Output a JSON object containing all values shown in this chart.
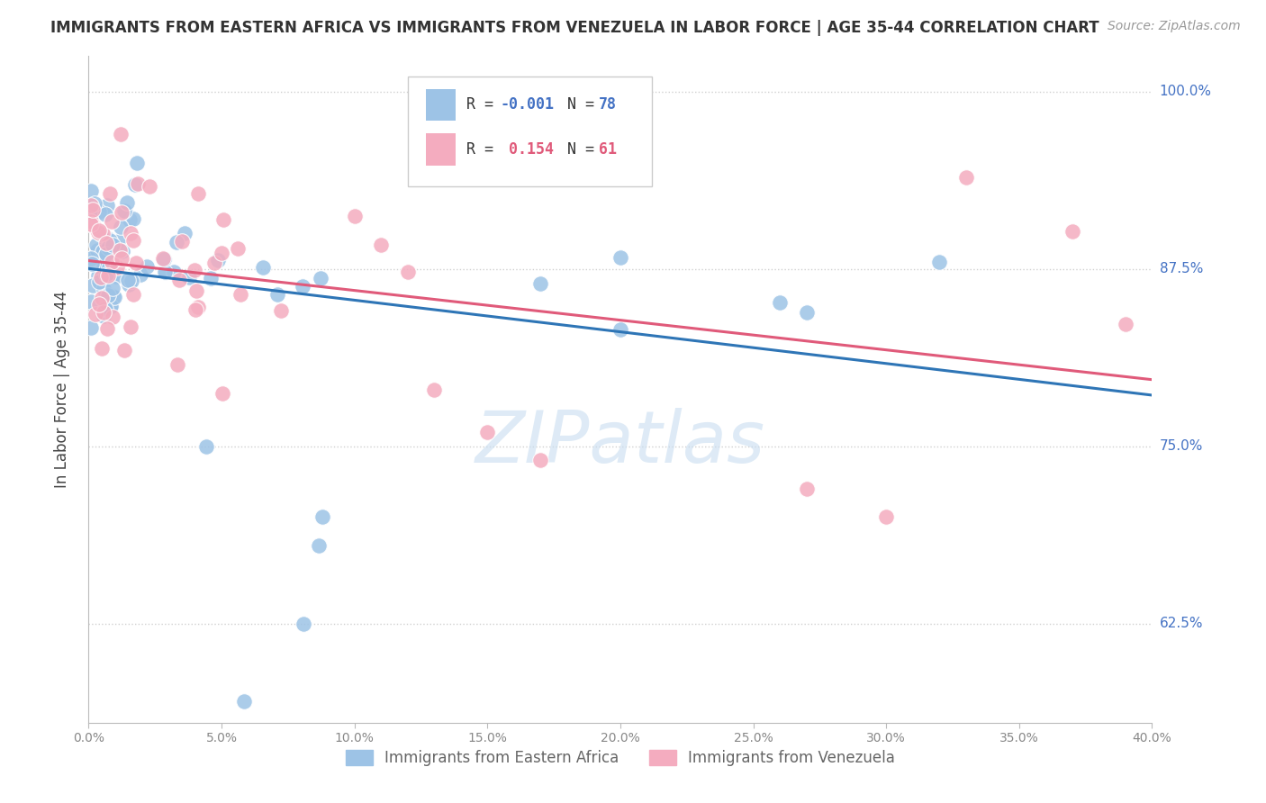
{
  "title": "IMMIGRANTS FROM EASTERN AFRICA VS IMMIGRANTS FROM VENEZUELA IN LABOR FORCE | AGE 35-44 CORRELATION CHART",
  "source": "Source: ZipAtlas.com",
  "ylabel": "In Labor Force | Age 35-44",
  "series1_label": "Immigrants from Eastern Africa",
  "series1_R": -0.001,
  "series1_N": 78,
  "series1_color": "#9dc3e6",
  "series1_line_color": "#2e75b6",
  "series2_label": "Immigrants from Venezuela",
  "series2_R": 0.154,
  "series2_N": 61,
  "series2_color": "#f4acbf",
  "series2_line_color": "#e05a7a",
  "watermark": "ZIPatlas",
  "background_color": "#ffffff",
  "plot_bg_color": "#ffffff",
  "grid_color": "#d0d0d0",
  "xmin": 0.0,
  "xmax": 0.4,
  "ymin": 0.555,
  "ymax": 1.025,
  "ytick_labels": [
    "62.5%",
    "75.0%",
    "87.5%",
    "100.0%"
  ],
  "ytick_values": [
    0.625,
    0.75,
    0.875,
    1.0
  ],
  "xtick_values": [
    0.0,
    0.05,
    0.1,
    0.15,
    0.2,
    0.25,
    0.3,
    0.35,
    0.4
  ],
  "right_label_color": "#4472c4",
  "legend_bottom_left": "Immigrants from Eastern Africa",
  "legend_bottom_right": "Immigrants from Venezuela"
}
